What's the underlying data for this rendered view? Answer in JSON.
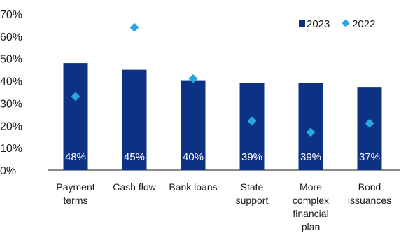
{
  "chart_data": {
    "type": "bar",
    "categories": [
      [
        "Payment",
        "terms"
      ],
      [
        "Cash flow"
      ],
      [
        "Bank loans"
      ],
      [
        "State",
        "support"
      ],
      [
        "More",
        "complex",
        "financial",
        "plan"
      ],
      [
        "Bond",
        "issuances"
      ]
    ],
    "series": [
      {
        "name": "2023",
        "type": "bar",
        "values": [
          48,
          45,
          40,
          39,
          39,
          37
        ],
        "color": "#0e3283"
      },
      {
        "name": "2022",
        "type": "scatter",
        "marker": "diamond",
        "values": [
          33,
          64,
          41,
          22,
          17,
          21
        ],
        "color": "#2aa7df"
      }
    ],
    "data_labels": [
      "48%",
      "45%",
      "40%",
      "39%",
      "39%",
      "37%"
    ],
    "y_ticks": [
      "0%",
      "10%",
      "20%",
      "30%",
      "40%",
      "50%",
      "60%",
      "70%"
    ],
    "ylim": [
      0,
      70
    ],
    "grid": false,
    "legend_position": "top-right"
  }
}
